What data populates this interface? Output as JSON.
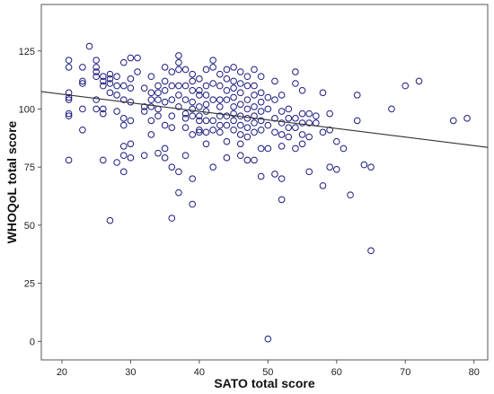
{
  "chart_data": {
    "type": "scatter",
    "title": "",
    "xlabel": "SATO total score",
    "ylabel": "WHOQoL total score",
    "xlim": [
      17,
      82
    ],
    "ylim": [
      -8,
      145
    ],
    "xticks": [
      20,
      30,
      40,
      50,
      60,
      70,
      80
    ],
    "yticks": [
      0,
      25,
      50,
      75,
      100,
      125
    ],
    "grid": false,
    "legend": "none",
    "colors": {
      "marker": "#1a1a80",
      "fit_line": "#333333",
      "frame": "#555555",
      "background": "#ffffff"
    },
    "fit_line": {
      "x": [
        17,
        82
      ],
      "y": [
        107.5,
        83.5
      ]
    },
    "points": [
      [
        21,
        121
      ],
      [
        21,
        118
      ],
      [
        21,
        107
      ],
      [
        21,
        105
      ],
      [
        21,
        104
      ],
      [
        21,
        98
      ],
      [
        21,
        97
      ],
      [
        21,
        78
      ],
      [
        23,
        118
      ],
      [
        23,
        112
      ],
      [
        23,
        111
      ],
      [
        23,
        100
      ],
      [
        23,
        91
      ],
      [
        24,
        127
      ],
      [
        25,
        121
      ],
      [
        25,
        118
      ],
      [
        25,
        116
      ],
      [
        25,
        114
      ],
      [
        25,
        104
      ],
      [
        25,
        100
      ],
      [
        26,
        114
      ],
      [
        26,
        112
      ],
      [
        26,
        110
      ],
      [
        26,
        100
      ],
      [
        26,
        98
      ],
      [
        26,
        78
      ],
      [
        27,
        115
      ],
      [
        27,
        113
      ],
      [
        27,
        111
      ],
      [
        27,
        107
      ],
      [
        27,
        52
      ],
      [
        28,
        114
      ],
      [
        28,
        110
      ],
      [
        28,
        106
      ],
      [
        28,
        99
      ],
      [
        28,
        77
      ],
      [
        29,
        120
      ],
      [
        29,
        110
      ],
      [
        29,
        104
      ],
      [
        29,
        96
      ],
      [
        29,
        93
      ],
      [
        29,
        84
      ],
      [
        29,
        80
      ],
      [
        29,
        73
      ],
      [
        30,
        122
      ],
      [
        30,
        113
      ],
      [
        30,
        109
      ],
      [
        30,
        103
      ],
      [
        30,
        95
      ],
      [
        30,
        85
      ],
      [
        30,
        79
      ],
      [
        31,
        122
      ],
      [
        31,
        116
      ],
      [
        32,
        109
      ],
      [
        32,
        101
      ],
      [
        32,
        99
      ],
      [
        32,
        80
      ],
      [
        33,
        114
      ],
      [
        33,
        107
      ],
      [
        33,
        104
      ],
      [
        33,
        101
      ],
      [
        33,
        95
      ],
      [
        33,
        89
      ],
      [
        34,
        110
      ],
      [
        34,
        107
      ],
      [
        34,
        104
      ],
      [
        34,
        100
      ],
      [
        34,
        97
      ],
      [
        34,
        81
      ],
      [
        35,
        118
      ],
      [
        35,
        112
      ],
      [
        35,
        108
      ],
      [
        35,
        103
      ],
      [
        35,
        93
      ],
      [
        35,
        83
      ],
      [
        35,
        79
      ],
      [
        36,
        116
      ],
      [
        36,
        110
      ],
      [
        36,
        104
      ],
      [
        36,
        97
      ],
      [
        36,
        92
      ],
      [
        36,
        75
      ],
      [
        36,
        53
      ],
      [
        37,
        123
      ],
      [
        37,
        120
      ],
      [
        37,
        117
      ],
      [
        37,
        110
      ],
      [
        37,
        106
      ],
      [
        37,
        101
      ],
      [
        37,
        73
      ],
      [
        37,
        64
      ],
      [
        38,
        117
      ],
      [
        38,
        110
      ],
      [
        38,
        104
      ],
      [
        38,
        98
      ],
      [
        38,
        96
      ],
      [
        38,
        92
      ],
      [
        38,
        80
      ],
      [
        39,
        115
      ],
      [
        39,
        112
      ],
      [
        39,
        108
      ],
      [
        39,
        103
      ],
      [
        39,
        100
      ],
      [
        39,
        97
      ],
      [
        39,
        89
      ],
      [
        39,
        70
      ],
      [
        39,
        59
      ],
      [
        40,
        113
      ],
      [
        40,
        108
      ],
      [
        40,
        106
      ],
      [
        40,
        101
      ],
      [
        40,
        97
      ],
      [
        40,
        95
      ],
      [
        40,
        91
      ],
      [
        40,
        90
      ],
      [
        41,
        117
      ],
      [
        41,
        110
      ],
      [
        41,
        106
      ],
      [
        41,
        102
      ],
      [
        41,
        99
      ],
      [
        41,
        95
      ],
      [
        41,
        90
      ],
      [
        41,
        85
      ],
      [
        42,
        121
      ],
      [
        42,
        118
      ],
      [
        42,
        111
      ],
      [
        42,
        104
      ],
      [
        42,
        95
      ],
      [
        42,
        91
      ],
      [
        42,
        75
      ],
      [
        43,
        115
      ],
      [
        43,
        110
      ],
      [
        43,
        104
      ],
      [
        43,
        101
      ],
      [
        43,
        97
      ],
      [
        43,
        93
      ],
      [
        43,
        90
      ],
      [
        44,
        117
      ],
      [
        44,
        113
      ],
      [
        44,
        108
      ],
      [
        44,
        104
      ],
      [
        44,
        97
      ],
      [
        44,
        93
      ],
      [
        44,
        86
      ],
      [
        44,
        79
      ],
      [
        45,
        118
      ],
      [
        45,
        112
      ],
      [
        45,
        109
      ],
      [
        45,
        105
      ],
      [
        45,
        101
      ],
      [
        45,
        98
      ],
      [
        45,
        95
      ],
      [
        45,
        91
      ],
      [
        46,
        116
      ],
      [
        46,
        111
      ],
      [
        46,
        107
      ],
      [
        46,
        102
      ],
      [
        46,
        97
      ],
      [
        46,
        93
      ],
      [
        46,
        89
      ],
      [
        46,
        85
      ],
      [
        46,
        80
      ],
      [
        47,
        114
      ],
      [
        47,
        110
      ],
      [
        47,
        104
      ],
      [
        47,
        100
      ],
      [
        47,
        96
      ],
      [
        47,
        92
      ],
      [
        47,
        88
      ],
      [
        47,
        78
      ],
      [
        48,
        117
      ],
      [
        48,
        110
      ],
      [
        48,
        106
      ],
      [
        48,
        101
      ],
      [
        48,
        97
      ],
      [
        48,
        94
      ],
      [
        48,
        90
      ],
      [
        48,
        78
      ],
      [
        49,
        114
      ],
      [
        49,
        107
      ],
      [
        49,
        103
      ],
      [
        49,
        99
      ],
      [
        49,
        95
      ],
      [
        49,
        91
      ],
      [
        49,
        83
      ],
      [
        49,
        71
      ],
      [
        50,
        105
      ],
      [
        50,
        100
      ],
      [
        50,
        93
      ],
      [
        50,
        83
      ],
      [
        50,
        1
      ],
      [
        51,
        112
      ],
      [
        51,
        104
      ],
      [
        51,
        96
      ],
      [
        51,
        90
      ],
      [
        51,
        72
      ],
      [
        52,
        106
      ],
      [
        52,
        99
      ],
      [
        52,
        94
      ],
      [
        52,
        89
      ],
      [
        52,
        84
      ],
      [
        52,
        70
      ],
      [
        52,
        61
      ],
      [
        53,
        100
      ],
      [
        53,
        96
      ],
      [
        53,
        92
      ],
      [
        53,
        88
      ],
      [
        54,
        116
      ],
      [
        54,
        111
      ],
      [
        54,
        96
      ],
      [
        54,
        92
      ],
      [
        54,
        83
      ],
      [
        55,
        108
      ],
      [
        55,
        98
      ],
      [
        55,
        94
      ],
      [
        55,
        89
      ],
      [
        55,
        85
      ],
      [
        56,
        98
      ],
      [
        56,
        94
      ],
      [
        56,
        88
      ],
      [
        56,
        73
      ],
      [
        57,
        97
      ],
      [
        57,
        94
      ],
      [
        58,
        107
      ],
      [
        58,
        90
      ],
      [
        58,
        67
      ],
      [
        59,
        98
      ],
      [
        59,
        91
      ],
      [
        59,
        75
      ],
      [
        60,
        86
      ],
      [
        60,
        74
      ],
      [
        61,
        83
      ],
      [
        62,
        63
      ],
      [
        63,
        106
      ],
      [
        63,
        95
      ],
      [
        64,
        76
      ],
      [
        65,
        75
      ],
      [
        65,
        39
      ],
      [
        68,
        100
      ],
      [
        70,
        110
      ],
      [
        72,
        112
      ],
      [
        77,
        95
      ],
      [
        79,
        96
      ]
    ]
  }
}
